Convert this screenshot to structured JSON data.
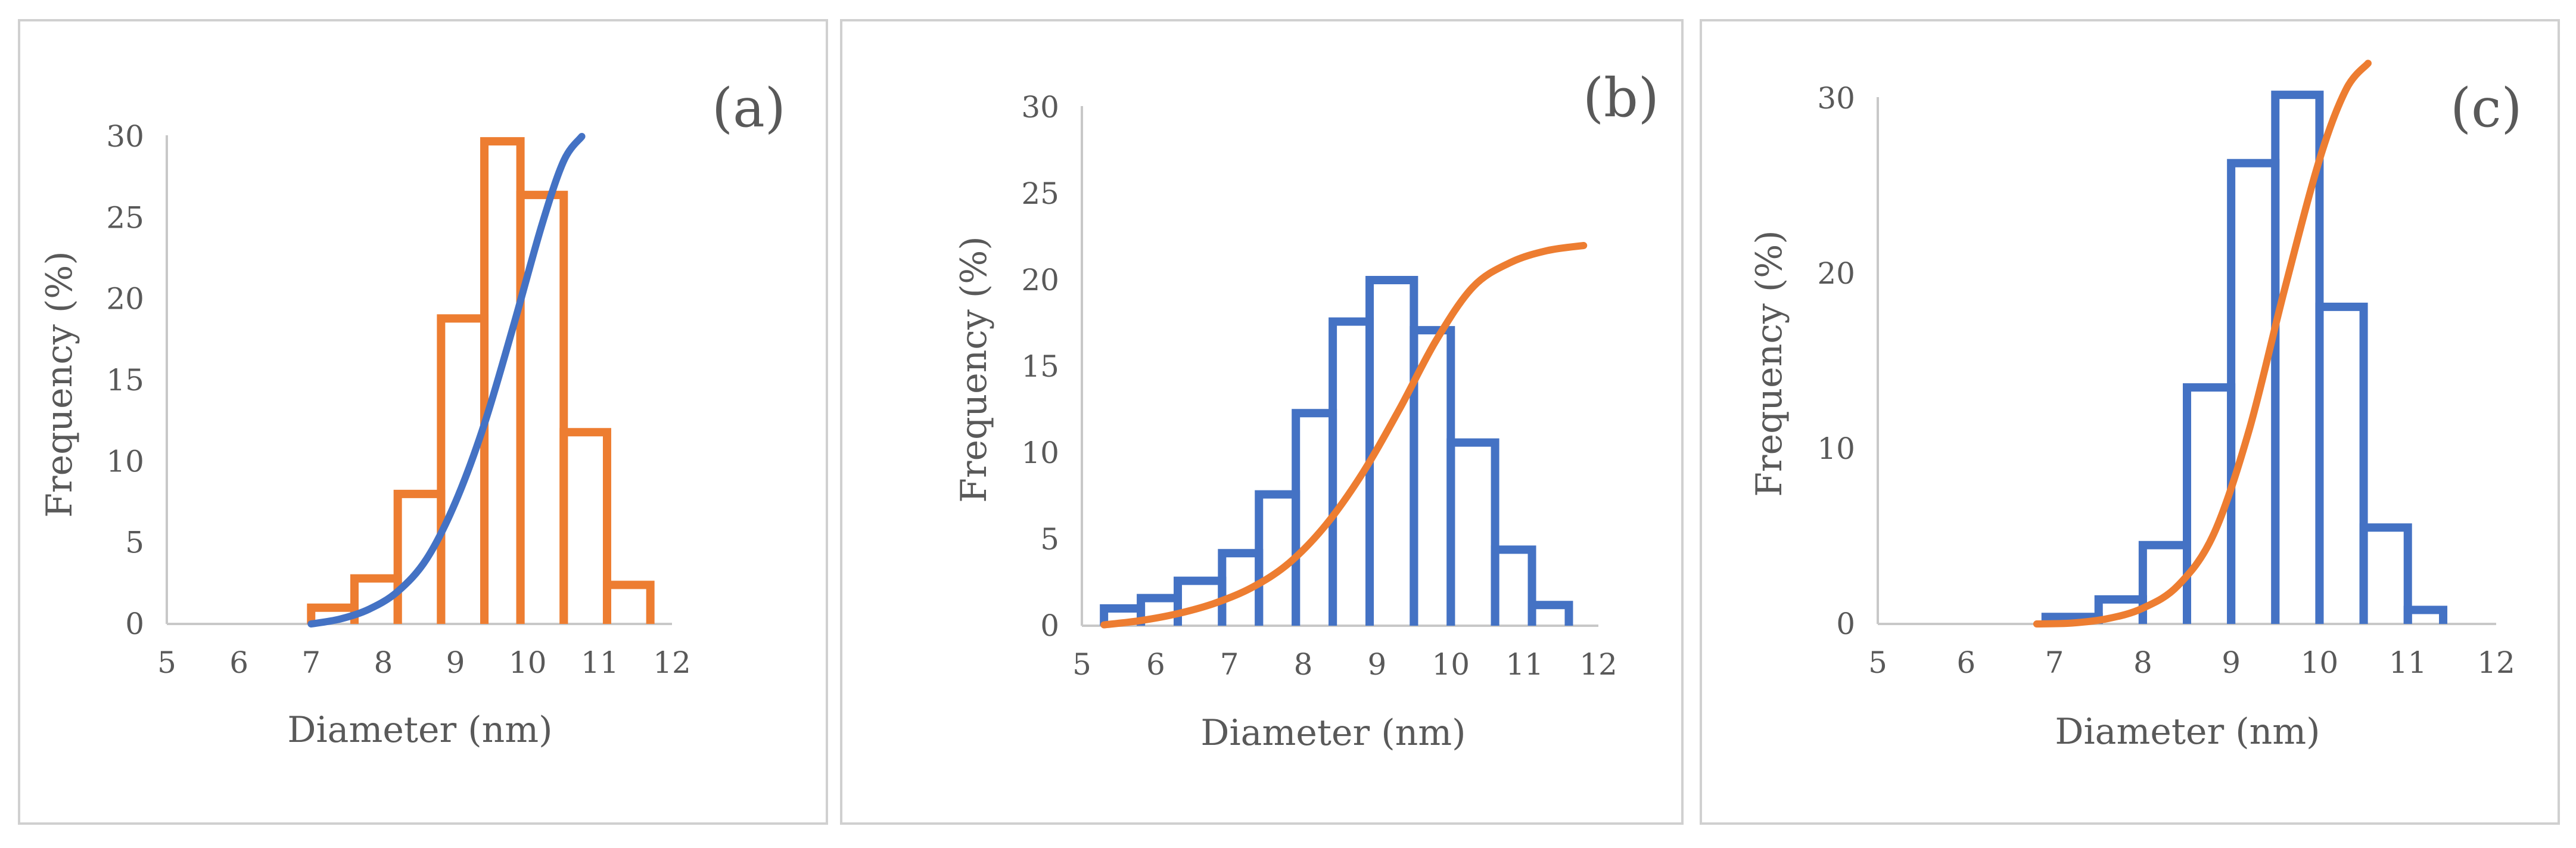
{
  "colors": {
    "blue": "#4472C4",
    "orange": "#ED7D31"
  },
  "chart_data": [
    {
      "type": "bar",
      "panel_label": "(a)",
      "xlabel": "Diameter (nm)",
      "ylabel": "Frequency (%)",
      "xlim": [
        5,
        12
      ],
      "ylim": [
        0,
        30
      ],
      "xticks": [
        5,
        6,
        7,
        8,
        9,
        10,
        11,
        12
      ],
      "yticks": [
        0,
        5,
        10,
        15,
        20,
        25,
        30
      ],
      "bar_color": "orange",
      "curve_color": "blue",
      "bins": [
        {
          "x0": 7.0,
          "x1": 7.6,
          "value": 1.0
        },
        {
          "x0": 7.6,
          "x1": 8.2,
          "value": 2.8
        },
        {
          "x0": 8.2,
          "x1": 8.8,
          "value": 8.0
        },
        {
          "x0": 8.8,
          "x1": 9.4,
          "value": 18.8
        },
        {
          "x0": 9.4,
          "x1": 9.9,
          "value": 29.7
        },
        {
          "x0": 9.9,
          "x1": 10.5,
          "value": 26.4
        },
        {
          "x0": 10.5,
          "x1": 11.1,
          "value": 11.8
        },
        {
          "x0": 11.1,
          "x1": 11.7,
          "value": 2.4
        }
      ],
      "curve": {
        "x": [
          7.0,
          7.4,
          7.8,
          8.2,
          8.6,
          9.0,
          9.4,
          9.8,
          10.2,
          10.5,
          10.75
        ],
        "y": [
          0,
          0.3,
          0.9,
          2.0,
          4.0,
          7.5,
          12.3,
          18.3,
          24.6,
          28.5,
          30
        ]
      }
    },
    {
      "type": "bar",
      "panel_label": "(b)",
      "xlabel": "Diameter (nm)",
      "ylabel": "Frequency (%)",
      "xlim": [
        5,
        12
      ],
      "ylim": [
        0,
        30
      ],
      "xticks": [
        5,
        6,
        7,
        8,
        9,
        10,
        11,
        12
      ],
      "yticks": [
        0,
        5,
        10,
        15,
        20,
        25,
        30
      ],
      "bar_color": "blue",
      "curve_color": "orange",
      "bins": [
        {
          "x0": 5.3,
          "x1": 5.8,
          "value": 1.0
        },
        {
          "x0": 5.8,
          "x1": 6.3,
          "value": 1.6
        },
        {
          "x0": 6.3,
          "x1": 6.9,
          "value": 2.6
        },
        {
          "x0": 6.9,
          "x1": 7.4,
          "value": 4.2
        },
        {
          "x0": 7.4,
          "x1": 7.9,
          "value": 7.6
        },
        {
          "x0": 7.9,
          "x1": 8.4,
          "value": 12.3
        },
        {
          "x0": 8.4,
          "x1": 8.9,
          "value": 17.6
        },
        {
          "x0": 8.9,
          "x1": 9.5,
          "value": 20.0
        },
        {
          "x0": 9.5,
          "x1": 10.0,
          "value": 17.1
        },
        {
          "x0": 10.0,
          "x1": 10.6,
          "value": 10.6
        },
        {
          "x0": 10.6,
          "x1": 11.1,
          "value": 4.4
        },
        {
          "x0": 11.1,
          "x1": 11.6,
          "value": 1.2
        }
      ],
      "curve": {
        "x": [
          5.3,
          5.8,
          6.3,
          6.8,
          7.3,
          7.8,
          8.3,
          8.8,
          9.3,
          9.8,
          10.3,
          10.8,
          11.3,
          11.8
        ],
        "y": [
          0.05,
          0.3,
          0.7,
          1.3,
          2.2,
          3.6,
          5.8,
          8.8,
          12.5,
          16.5,
          19.6,
          21.0,
          21.7,
          22.0
        ]
      }
    },
    {
      "type": "bar",
      "panel_label": "(c)",
      "xlabel": "Diameter (nm)",
      "ylabel": "Frequency (%)",
      "xlim": [
        5,
        12
      ],
      "ylim": [
        0,
        30
      ],
      "xticks": [
        5,
        6,
        7,
        8,
        9,
        10,
        11,
        12
      ],
      "yticks": [
        0,
        10,
        20,
        30
      ],
      "bar_color": "blue",
      "curve_color": "orange",
      "bins": [
        {
          "x0": 6.9,
          "x1": 7.5,
          "value": 0.4
        },
        {
          "x0": 7.5,
          "x1": 8.0,
          "value": 1.4
        },
        {
          "x0": 8.0,
          "x1": 8.5,
          "value": 4.5
        },
        {
          "x0": 8.5,
          "x1": 9.0,
          "value": 13.5
        },
        {
          "x0": 9.0,
          "x1": 9.5,
          "value": 26.3
        },
        {
          "x0": 9.5,
          "x1": 10.0,
          "value": 30.2
        },
        {
          "x0": 10.0,
          "x1": 10.5,
          "value": 18.1
        },
        {
          "x0": 10.5,
          "x1": 11.0,
          "value": 5.5
        },
        {
          "x0": 11.0,
          "x1": 11.4,
          "value": 0.8
        }
      ],
      "curve": {
        "x": [
          6.8,
          7.2,
          7.6,
          8.0,
          8.4,
          8.8,
          9.2,
          9.6,
          10.0,
          10.3,
          10.55
        ],
        "y": [
          0,
          0.05,
          0.3,
          0.9,
          2.2,
          5.1,
          11.0,
          19.0,
          26.5,
          30.5,
          32.0
        ]
      }
    }
  ]
}
